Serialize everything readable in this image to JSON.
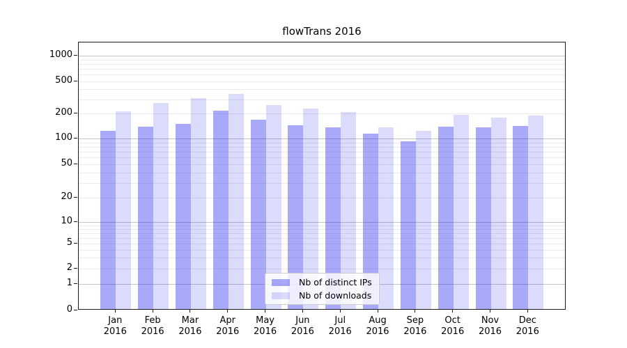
{
  "title": "flowTrans 2016",
  "colors": {
    "bar_distinct_ips": "rgba(40,40,240,0.40)",
    "bar_downloads": "rgba(40,40,240,0.17)",
    "grid_major": "#c4c4c4",
    "grid_minor": "#ebebeb",
    "axis": "#1a1a1a"
  },
  "legend": {
    "items": [
      {
        "label": "Nb of distinct IPs",
        "color_key": "bar_distinct_ips"
      },
      {
        "label": "Nb of downloads",
        "color_key": "bar_downloads"
      }
    ]
  },
  "chart_data": {
    "type": "bar",
    "title": "flowTrans 2016",
    "categories": [
      "Jan",
      "Feb",
      "Mar",
      "Apr",
      "May",
      "Jun",
      "Jul",
      "Aug",
      "Sep",
      "Oct",
      "Nov",
      "Dec"
    ],
    "x_tick_second_line": "2016",
    "series": [
      {
        "name": "Nb of distinct IPs",
        "values": [
          120,
          133,
          143,
          210,
          163,
          139,
          131,
          110,
          90,
          133,
          131,
          136
        ]
      },
      {
        "name": "Nb of downloads",
        "values": [
          205,
          260,
          300,
          335,
          245,
          220,
          200,
          130,
          120,
          185,
          170,
          181
        ]
      }
    ],
    "xlabel": "",
    "ylabel": "",
    "yscale": "log-like (1-2-5 labeled ticks, linear segment 0-1)",
    "ytick_labels": [
      "0",
      "1",
      "2",
      "5",
      "10",
      "20",
      "50",
      "100",
      "200",
      "500",
      "1000"
    ],
    "ylim": [
      0,
      1400
    ],
    "grid": true,
    "legend_position": "lower center (inside axes)"
  }
}
